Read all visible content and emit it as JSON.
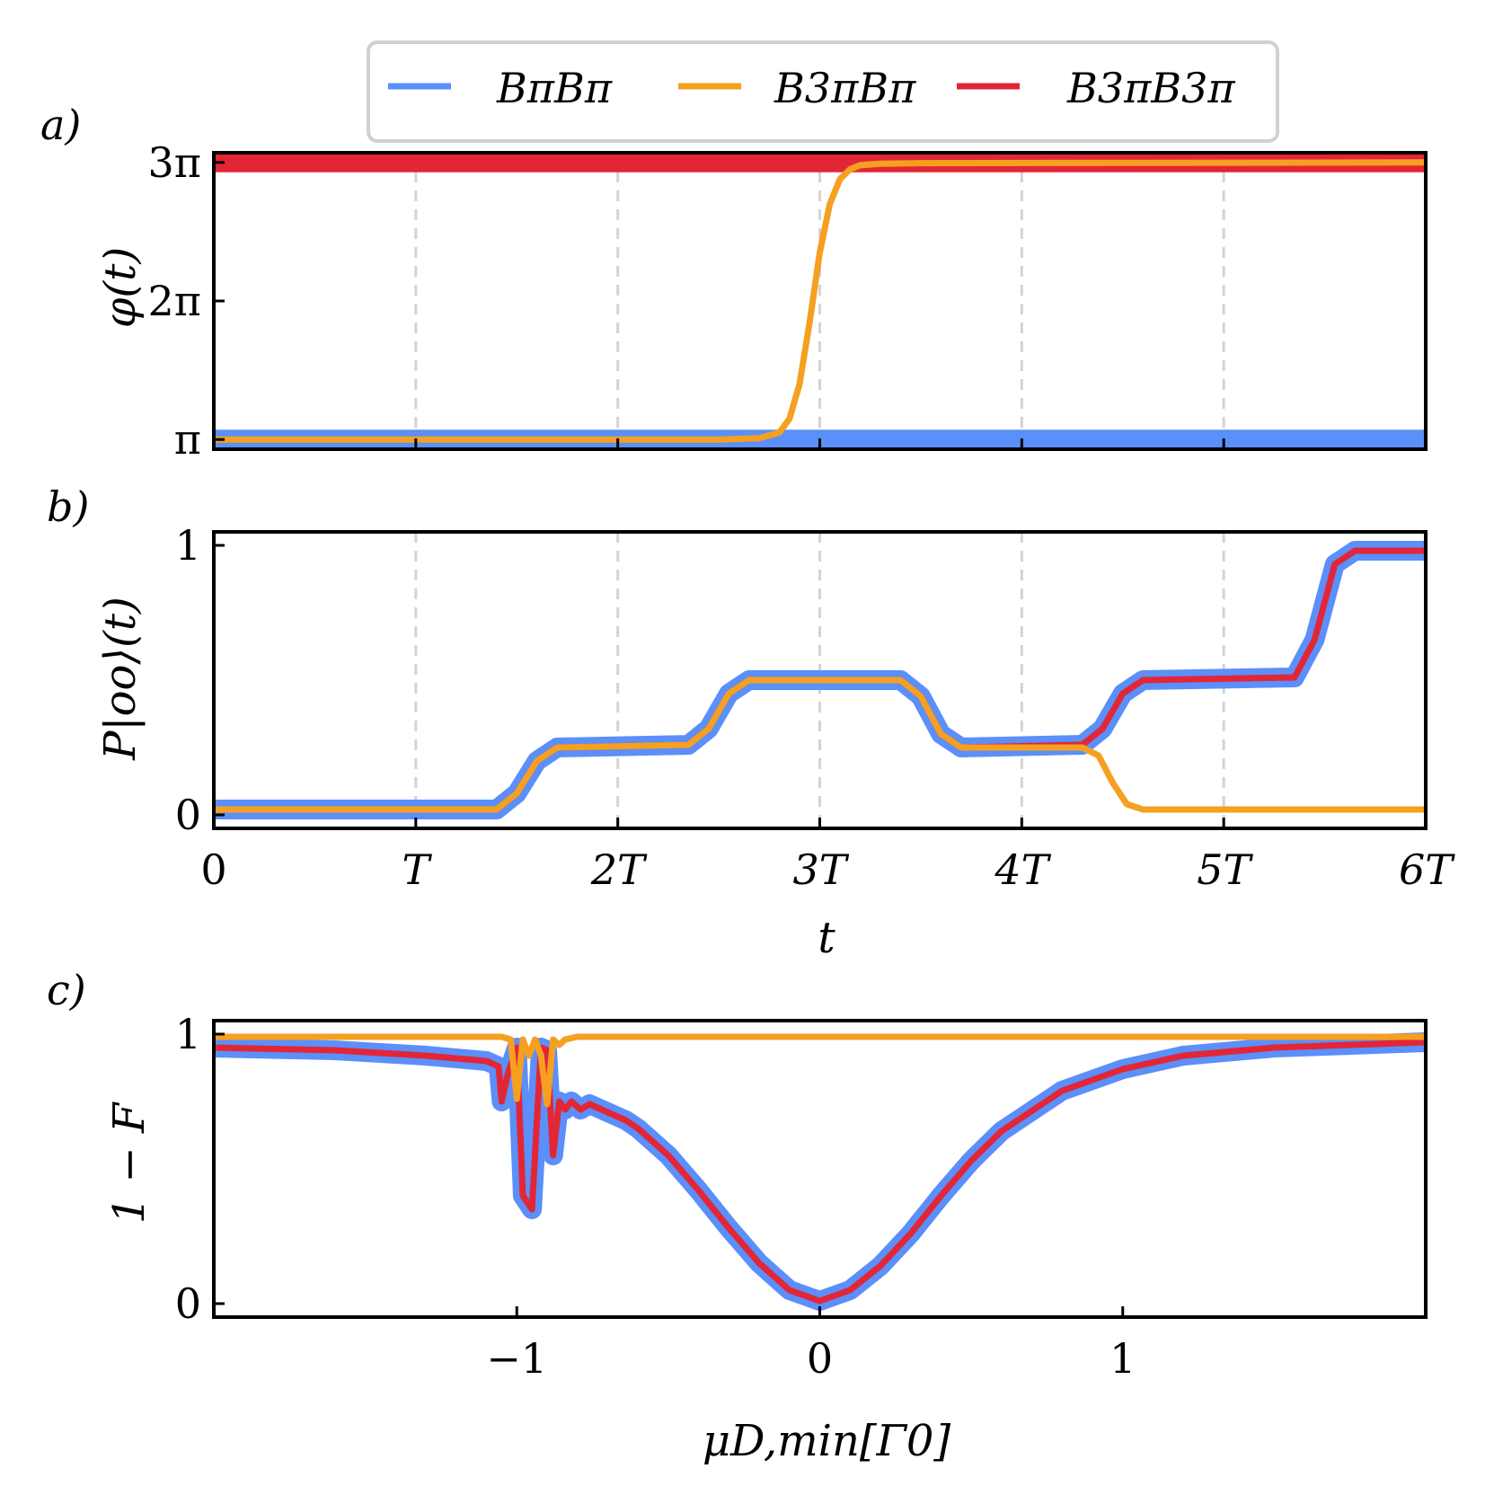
{
  "legend": {
    "entries": [
      {
        "label": "BπBπ",
        "color": "#5b8ff9"
      },
      {
        "label": "B3πBπ",
        "color": "#f5a020"
      },
      {
        "label": "B3πB3π",
        "color": "#e32636"
      }
    ]
  },
  "panels": {
    "a": {
      "label": "a)",
      "ylabel": "φ(t)"
    },
    "b": {
      "label": "b)",
      "ylabel": "P|oo⟩(t)",
      "xlabel": "t"
    },
    "c": {
      "label": "c)",
      "ylabel": "1 − F",
      "xlabel": "μD,min[Γ0]"
    }
  },
  "chart_data": [
    {
      "panel": "a",
      "type": "line",
      "ylabel": "φ(t)",
      "xlim": [
        0,
        6
      ],
      "ylim": [
        1,
        3
      ],
      "x_ticks": [
        {
          "value": 0,
          "label": ""
        },
        {
          "value": 1,
          "label": ""
        },
        {
          "value": 2,
          "label": ""
        },
        {
          "value": 3,
          "label": ""
        },
        {
          "value": 4,
          "label": ""
        },
        {
          "value": 5,
          "label": ""
        },
        {
          "value": 6,
          "label": ""
        }
      ],
      "y_ticks": [
        {
          "value": 1,
          "label": "π"
        },
        {
          "value": 2,
          "label": "2π"
        },
        {
          "value": 3,
          "label": "3π"
        }
      ],
      "y_unit": "π",
      "x_unit": "T",
      "vgrid": [
        1,
        2,
        3,
        4,
        5
      ],
      "series": [
        {
          "name": "BπBπ",
          "color": "#5b8ff9",
          "width": 22,
          "x": [
            0,
            6
          ],
          "y": [
            1.0,
            1.0
          ]
        },
        {
          "name": "B3πB3π",
          "color": "#e32636",
          "width": 22,
          "x": [
            0,
            6
          ],
          "y": [
            3.0,
            3.0
          ]
        },
        {
          "name": "B3πBπ",
          "color": "#f5a020",
          "width": 7,
          "x": [
            0,
            2.5,
            2.7,
            2.8,
            2.85,
            2.9,
            2.95,
            3.0,
            3.05,
            3.1,
            3.15,
            3.2,
            3.3,
            3.5,
            6
          ],
          "y": [
            1.0,
            1.0,
            1.01,
            1.05,
            1.15,
            1.4,
            1.85,
            2.35,
            2.7,
            2.88,
            2.95,
            2.98,
            2.99,
            2.995,
            3.0
          ]
        }
      ]
    },
    {
      "panel": "b",
      "type": "line",
      "ylabel": "P|oo⟩(t)",
      "xlabel": "t",
      "xlim": [
        0,
        6
      ],
      "ylim": [
        0,
        1
      ],
      "x_ticks": [
        {
          "value": 0,
          "label": "0"
        },
        {
          "value": 1,
          "label": "T"
        },
        {
          "value": 2,
          "label": "2T"
        },
        {
          "value": 3,
          "label": "3T"
        },
        {
          "value": 4,
          "label": "4T"
        },
        {
          "value": 5,
          "label": "5T"
        },
        {
          "value": 6,
          "label": "6T"
        }
      ],
      "y_ticks": [
        {
          "value": 0,
          "label": "0"
        },
        {
          "value": 1,
          "label": "1"
        }
      ],
      "vgrid": [
        1,
        2,
        3,
        4,
        5
      ],
      "series": [
        {
          "name": "BπBπ",
          "color": "#5b8ff9",
          "width": 22,
          "x": [
            0,
            1.4,
            1.5,
            1.6,
            1.7,
            2.35,
            2.45,
            2.55,
            2.65,
            3.4,
            3.5,
            3.6,
            3.7,
            4.3,
            4.4,
            4.5,
            4.6,
            5.35,
            5.45,
            5.55,
            5.65,
            6
          ],
          "y": [
            0.02,
            0.02,
            0.08,
            0.2,
            0.25,
            0.26,
            0.32,
            0.45,
            0.5,
            0.5,
            0.44,
            0.3,
            0.25,
            0.26,
            0.32,
            0.45,
            0.5,
            0.51,
            0.65,
            0.93,
            0.98,
            0.98
          ]
        },
        {
          "name": "B3πB3π",
          "color": "#e32636",
          "width": 7,
          "x": [
            0,
            1.4,
            1.5,
            1.6,
            1.7,
            2.35,
            2.45,
            2.55,
            2.65,
            3.4,
            3.5,
            3.6,
            3.7,
            4.3,
            4.4,
            4.5,
            4.6,
            5.35,
            5.45,
            5.55,
            5.65,
            6
          ],
          "y": [
            0.02,
            0.02,
            0.08,
            0.2,
            0.25,
            0.26,
            0.32,
            0.45,
            0.5,
            0.5,
            0.44,
            0.3,
            0.25,
            0.26,
            0.32,
            0.45,
            0.5,
            0.51,
            0.65,
            0.93,
            0.98,
            0.98
          ]
        },
        {
          "name": "B3πBπ",
          "color": "#f5a020",
          "width": 7,
          "x": [
            0,
            1.4,
            1.5,
            1.6,
            1.7,
            2.35,
            2.45,
            2.55,
            2.65,
            3.4,
            3.5,
            3.6,
            3.7,
            4.3,
            4.38,
            4.45,
            4.52,
            4.6,
            6
          ],
          "y": [
            0.02,
            0.02,
            0.08,
            0.2,
            0.25,
            0.26,
            0.32,
            0.45,
            0.5,
            0.5,
            0.44,
            0.3,
            0.25,
            0.25,
            0.22,
            0.12,
            0.04,
            0.02,
            0.02
          ]
        }
      ]
    },
    {
      "panel": "c",
      "type": "line",
      "ylabel": "1 − F",
      "xlabel": "μD,min[Γ0]",
      "xlim": [
        -2,
        2
      ],
      "ylim": [
        0,
        1
      ],
      "x_ticks": [
        {
          "value": -1,
          "label": "−1"
        },
        {
          "value": 0,
          "label": "0"
        },
        {
          "value": 1,
          "label": "1"
        }
      ],
      "y_ticks": [
        {
          "value": 0,
          "label": "0"
        },
        {
          "value": 1,
          "label": "1"
        }
      ],
      "vgrid": [],
      "series": [
        {
          "name": "BπBπ",
          "color": "#5b8ff9",
          "width": 22,
          "x": [
            -2,
            -1.6,
            -1.3,
            -1.1,
            -1.06,
            -1.05,
            -1.03,
            -1.0,
            -0.98,
            -0.95,
            -0.92,
            -0.9,
            -0.88,
            -0.86,
            -0.84,
            -0.82,
            -0.79,
            -0.76,
            -0.72,
            -0.68,
            -0.64,
            -0.6,
            -0.5,
            -0.4,
            -0.3,
            -0.2,
            -0.1,
            0,
            0.1,
            0.2,
            0.3,
            0.4,
            0.5,
            0.6,
            0.8,
            1.0,
            1.2,
            1.5,
            2
          ],
          "y": [
            0.95,
            0.94,
            0.92,
            0.9,
            0.88,
            0.75,
            0.85,
            0.95,
            0.4,
            0.35,
            0.95,
            0.94,
            0.55,
            0.75,
            0.72,
            0.75,
            0.72,
            0.74,
            0.72,
            0.7,
            0.68,
            0.65,
            0.55,
            0.42,
            0.28,
            0.15,
            0.05,
            0.01,
            0.05,
            0.14,
            0.26,
            0.4,
            0.53,
            0.64,
            0.79,
            0.87,
            0.92,
            0.95,
            0.97
          ]
        },
        {
          "name": "B3πB3π",
          "color": "#e32636",
          "width": 7,
          "x": [
            -2,
            -1.6,
            -1.3,
            -1.1,
            -1.06,
            -1.05,
            -1.03,
            -1.0,
            -0.98,
            -0.95,
            -0.92,
            -0.9,
            -0.88,
            -0.86,
            -0.84,
            -0.82,
            -0.79,
            -0.76,
            -0.72,
            -0.68,
            -0.64,
            -0.6,
            -0.5,
            -0.4,
            -0.3,
            -0.2,
            -0.1,
            0,
            0.1,
            0.2,
            0.3,
            0.4,
            0.5,
            0.6,
            0.8,
            1.0,
            1.2,
            1.5,
            2
          ],
          "y": [
            0.95,
            0.94,
            0.92,
            0.9,
            0.88,
            0.75,
            0.85,
            0.95,
            0.4,
            0.35,
            0.95,
            0.94,
            0.55,
            0.75,
            0.72,
            0.75,
            0.72,
            0.74,
            0.72,
            0.7,
            0.68,
            0.65,
            0.55,
            0.42,
            0.28,
            0.15,
            0.05,
            0.01,
            0.05,
            0.14,
            0.26,
            0.4,
            0.53,
            0.64,
            0.79,
            0.87,
            0.92,
            0.95,
            0.97
          ]
        },
        {
          "name": "B3πBπ",
          "color": "#f5a020",
          "width": 7,
          "x": [
            -2,
            -1.2,
            -1.05,
            -1.02,
            -1.0,
            -0.98,
            -0.96,
            -0.94,
            -0.92,
            -0.9,
            -0.88,
            -0.86,
            -0.84,
            -0.8,
            -0.7,
            -0.5,
            0,
            1,
            2
          ],
          "y": [
            0.99,
            0.99,
            0.99,
            0.98,
            0.76,
            0.98,
            0.92,
            0.98,
            0.92,
            0.74,
            0.98,
            0.96,
            0.98,
            0.99,
            0.99,
            0.99,
            0.99,
            0.99,
            0.99
          ]
        }
      ]
    }
  ]
}
